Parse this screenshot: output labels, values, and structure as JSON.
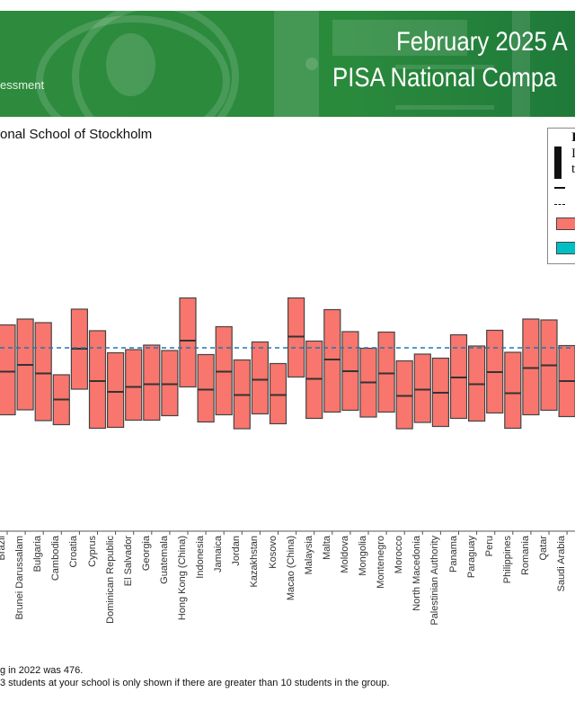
{
  "header": {
    "brand_fragment": "essment",
    "title_line1": "February 2025 A",
    "title_line2": "PISA National Compa",
    "banner_color": "#2e8b3e"
  },
  "subtitle": "onal School of Stockholm",
  "legend": {
    "fragments": [
      "I",
      "I",
      "t"
    ],
    "items": [
      {
        "symbol": "solid-line"
      },
      {
        "symbol": "dashed-line"
      },
      {
        "symbol": "box",
        "color": "#f8766d"
      },
      {
        "symbol": "box",
        "color": "#00bfc4"
      }
    ]
  },
  "chart_data": {
    "type": "box",
    "title": "",
    "xlabel": "",
    "ylabel": "",
    "grid": false,
    "legend_position": "right",
    "reference_line": {
      "value": 476,
      "style": "dashed",
      "color": "#1f77b4"
    },
    "box_color": "#f8766d",
    "categories": [
      "Brazil",
      "Brunei Darussalam",
      "Bulgaria",
      "Cambodia",
      "Croatia",
      "Cyprus",
      "Dominican Republic",
      "El Salvador",
      "Georgia",
      "Guatemala",
      "Hong Kong (China)",
      "Indonesia",
      "Jamaica",
      "Jordan",
      "Kazakhstan",
      "Kosovo",
      "Macao (China)",
      "Malaysia",
      "Malta",
      "Moldova",
      "Mongolia",
      "Montenegro",
      "Morocco",
      "North Macedonia",
      "Palestinian Authority",
      "Panama",
      "Paraguay",
      "Peru",
      "Philippines",
      "Romania",
      "Qatar",
      "Saudi Arabia"
    ],
    "q1": [
      327,
      338,
      314,
      305,
      384,
      297,
      299,
      315,
      315,
      325,
      389,
      311,
      327,
      296,
      329,
      307,
      411,
      319,
      333,
      337,
      322,
      333,
      296,
      310,
      301,
      319,
      313,
      331,
      297,
      327,
      337,
      323
    ],
    "median": [
      423,
      438,
      419,
      361,
      474,
      402,
      378,
      389,
      395,
      395,
      492,
      383,
      423,
      371,
      405,
      371,
      501,
      407,
      450,
      424,
      399,
      419,
      369,
      383,
      376,
      410,
      395,
      422,
      375,
      431,
      437,
      402
    ],
    "q3": [
      527,
      540,
      532,
      416,
      562,
      514,
      465,
      472,
      482,
      470,
      587,
      461,
      523,
      449,
      489,
      441,
      587,
      491,
      561,
      512,
      475,
      511,
      447,
      462,
      453,
      505,
      480,
      515,
      466,
      540,
      538,
      481
    ]
  },
  "footnotes": [
    "g in 2022 was 476.",
    "3 students at your school is only shown if there are greater than 10 students in the group."
  ]
}
